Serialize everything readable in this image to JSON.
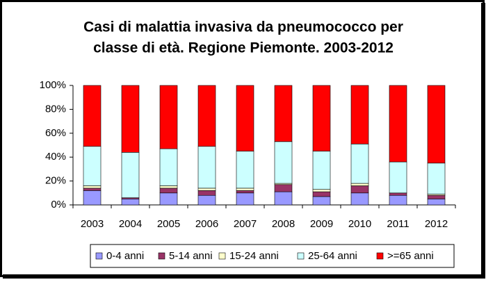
{
  "chart_data": {
    "type": "stacked_bar_percent",
    "title": [
      "Casi di malattia invasiva da pneumococco per",
      "classe di età. Regione Piemonte. 2003-2012"
    ],
    "categories": [
      "2003",
      "2004",
      "2005",
      "2006",
      "2007",
      "2008",
      "2009",
      "2010",
      "2011",
      "2012"
    ],
    "series": [
      {
        "name": "0-4 anni",
        "color": "#9999ff",
        "values": [
          12,
          5,
          10,
          8,
          10,
          11,
          7,
          10,
          8,
          5
        ]
      },
      {
        "name": "5-14 anni",
        "color": "#993366",
        "values": [
          2,
          1,
          4,
          4,
          2,
          6,
          4,
          6,
          2,
          3
        ]
      },
      {
        "name": "15-24 anni",
        "color": "#ffffcc",
        "values": [
          2,
          0,
          2,
          2,
          2,
          1,
          2,
          2,
          0,
          1
        ]
      },
      {
        "name": "25-64 anni",
        "color": "#ccffff",
        "values": [
          33,
          38,
          31,
          35,
          31,
          35,
          32,
          33,
          26,
          26
        ]
      },
      {
        "name": ">=65 anni",
        "color": "#ff0000",
        "values": [
          51,
          56,
          53,
          51,
          55,
          47,
          55,
          49,
          64,
          65
        ]
      }
    ],
    "ylim": [
      0,
      100
    ],
    "yticks": [
      {
        "value": 0,
        "label": "0%"
      },
      {
        "value": 20,
        "label": "20%"
      },
      {
        "value": 40,
        "label": "40%"
      },
      {
        "value": 60,
        "label": "60%"
      },
      {
        "value": 80,
        "label": "80%"
      },
      {
        "value": 100,
        "label": "100%"
      }
    ],
    "legend": "bottom"
  }
}
